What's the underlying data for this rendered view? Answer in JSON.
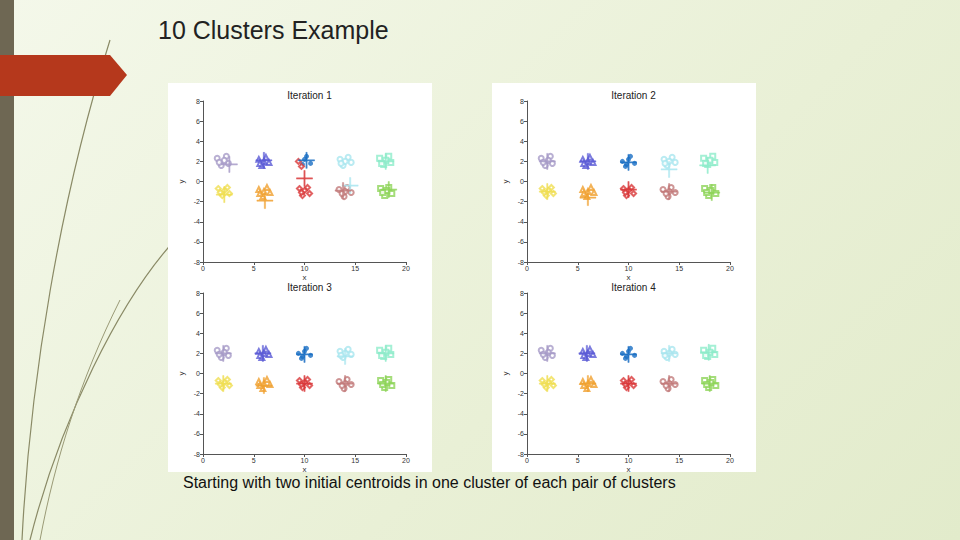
{
  "slide": {
    "title": "10 Clusters Example",
    "caption": "Starting with two initial centroids in one cluster of each pair of clusters"
  },
  "chart_data": [
    {
      "type": "scatter",
      "title": "Iteration 1",
      "xlabel": "x",
      "ylabel": "y",
      "xlim": [
        0,
        20
      ],
      "xticks": [
        0,
        5,
        10,
        15,
        20
      ],
      "ylim": [
        -8,
        8
      ],
      "yticks": [
        -8,
        -6,
        -4,
        -2,
        0,
        2,
        4,
        6,
        8
      ],
      "grid": false,
      "series": [
        {
          "color": "#a89cc8",
          "marker": "circle",
          "x": [
            1.4,
            1.8,
            2.3,
            2.5,
            2.1,
            1.6
          ],
          "y": [
            2.3,
            1.6,
            2.5,
            1.8,
            2.1,
            1.9
          ],
          "centroid": [
            2.6,
            1.7
          ]
        },
        {
          "color": "#5b5bd6",
          "marker": "triangle",
          "x": [
            5.5,
            5.8,
            6.2,
            6.5,
            6.0,
            5.6
          ],
          "y": [
            2.2,
            1.6,
            2.4,
            1.9,
            2.0,
            1.8
          ],
          "centroid": [
            6.0,
            2.1
          ]
        },
        {
          "color": "#1a6fc4",
          "marker": "dot",
          "x": [
            10.2,
            10.6,
            10.0,
            9.8
          ],
          "y": [
            2.5,
            1.8,
            2.2,
            1.7
          ],
          "centroid": [
            10.2,
            2.1
          ]
        },
        {
          "color": "#a9e6ef",
          "marker": "circle",
          "x": [
            13.5,
            13.8,
            14.3,
            14.6,
            14.0,
            13.6
          ],
          "y": [
            2.2,
            1.6,
            2.4,
            1.9,
            2.0,
            1.8
          ],
          "centroid": [
            14.5,
            -0.4
          ]
        },
        {
          "color": "#8feccb",
          "marker": "square",
          "x": [
            17.4,
            17.8,
            18.3,
            18.5,
            18.0,
            17.6
          ],
          "y": [
            2.3,
            1.7,
            2.5,
            1.9,
            2.1,
            1.8
          ],
          "centroid": [
            18.0,
            2.0
          ]
        },
        {
          "color": "#f0df52",
          "marker": "diamond",
          "x": [
            1.5,
            1.9,
            2.4,
            2.6,
            2.1,
            1.7
          ],
          "y": [
            -0.7,
            -1.4,
            -0.6,
            -1.2,
            -0.9,
            -1.1
          ],
          "centroid": [
            2.1,
            -1.3
          ]
        },
        {
          "color": "#f0a030",
          "marker": "triangle",
          "x": [
            5.5,
            5.9,
            6.3,
            6.6,
            6.0,
            5.6
          ],
          "y": [
            -0.8,
            -1.5,
            -0.6,
            -1.1,
            -1.0,
            -1.2
          ],
          "centroid": [
            6.1,
            -1.9
          ]
        },
        {
          "color": "#d9383a",
          "marker": "diamond",
          "x": [
            9.4,
            9.7,
            9.5,
            9.8,
            10.3,
            10.5,
            10.0,
            9.7
          ],
          "y": [
            2.0,
            1.5,
            -0.7,
            -1.4,
            -0.6,
            -1.2,
            -0.9,
            -1.1
          ],
          "centroid": [
            10.0,
            0.3
          ]
        },
        {
          "color": "#c27a7a",
          "marker": "circle",
          "x": [
            13.4,
            13.9,
            14.2,
            14.6,
            14.0,
            13.7
          ],
          "y": [
            -0.8,
            -1.5,
            -0.6,
            -1.1,
            -1.0,
            -1.2
          ],
          "centroid": [
            13.8,
            -0.9
          ]
        },
        {
          "color": "#8fd45a",
          "marker": "square",
          "x": [
            17.5,
            17.9,
            18.3,
            18.6,
            18.1,
            17.7
          ],
          "y": [
            -0.7,
            -1.4,
            -0.6,
            -1.2,
            -0.9,
            -1.1
          ],
          "centroid": [
            18.3,
            -0.8
          ]
        }
      ]
    },
    {
      "type": "scatter",
      "title": "Iteration 2",
      "xlabel": "x",
      "ylabel": "y",
      "xlim": [
        0,
        20
      ],
      "xticks": [
        0,
        5,
        10,
        15,
        20
      ],
      "ylim": [
        -8,
        8
      ],
      "yticks": [
        -8,
        -6,
        -4,
        -2,
        0,
        2,
        4,
        6,
        8
      ],
      "grid": false,
      "series": [
        {
          "color": "#a89cc8",
          "marker": "circle",
          "x": [
            1.4,
            1.8,
            2.3,
            2.5,
            2.1,
            1.6
          ],
          "y": [
            2.3,
            1.6,
            2.5,
            1.8,
            2.1,
            1.9
          ],
          "centroid": [
            2.0,
            2.0
          ]
        },
        {
          "color": "#5b5bd6",
          "marker": "triangle",
          "x": [
            5.5,
            5.8,
            6.2,
            6.5,
            6.0,
            5.6
          ],
          "y": [
            2.2,
            1.6,
            2.4,
            1.9,
            2.0,
            1.8
          ],
          "centroid": [
            6.0,
            2.0
          ]
        },
        {
          "color": "#1a6fc4",
          "marker": "dot",
          "x": [
            9.4,
            9.7,
            10.2,
            10.6,
            10.0,
            9.8
          ],
          "y": [
            2.0,
            1.5,
            2.5,
            1.8,
            2.2,
            1.7
          ],
          "centroid": [
            10.0,
            1.9
          ]
        },
        {
          "color": "#a9e6ef",
          "marker": "circle",
          "x": [
            13.5,
            13.8,
            14.3,
            14.6,
            14.0,
            13.6
          ],
          "y": [
            2.2,
            1.6,
            2.4,
            1.9,
            2.0,
            1.8
          ],
          "centroid": [
            14.0,
            1.2
          ]
        },
        {
          "color": "#8feccb",
          "marker": "square",
          "x": [
            17.4,
            17.8,
            18.3,
            18.5,
            18.0,
            17.6
          ],
          "y": [
            2.3,
            1.7,
            2.5,
            1.9,
            2.1,
            1.8
          ],
          "centroid": [
            17.8,
            1.6
          ]
        },
        {
          "color": "#f0df52",
          "marker": "diamond",
          "x": [
            1.5,
            1.9,
            2.4,
            2.6,
            2.1,
            1.7
          ],
          "y": [
            -0.7,
            -1.4,
            -0.6,
            -1.2,
            -0.9,
            -1.1
          ],
          "centroid": [
            2.0,
            -1.0
          ]
        },
        {
          "color": "#f0a030",
          "marker": "triangle",
          "x": [
            5.5,
            5.9,
            6.3,
            6.6,
            6.0,
            5.6
          ],
          "y": [
            -0.8,
            -1.5,
            -0.6,
            -1.1,
            -1.0,
            -1.2
          ],
          "centroid": [
            6.0,
            -1.6
          ]
        },
        {
          "color": "#d9383a",
          "marker": "diamond",
          "x": [
            9.5,
            9.8,
            10.3,
            10.5,
            10.0,
            9.7
          ],
          "y": [
            -0.7,
            -1.4,
            -0.6,
            -1.2,
            -0.9,
            -1.1
          ],
          "centroid": [
            10.0,
            -0.8
          ]
        },
        {
          "color": "#c27a7a",
          "marker": "circle",
          "x": [
            13.4,
            13.9,
            14.2,
            14.6,
            14.0,
            13.7
          ],
          "y": [
            -0.8,
            -1.5,
            -0.6,
            -1.1,
            -1.0,
            -1.2
          ],
          "centroid": [
            14.0,
            -1.0
          ]
        },
        {
          "color": "#8fd45a",
          "marker": "square",
          "x": [
            17.5,
            17.9,
            18.3,
            18.6,
            18.1,
            17.7
          ],
          "y": [
            -0.7,
            -1.4,
            -0.6,
            -1.2,
            -0.9,
            -1.1
          ],
          "centroid": [
            18.2,
            -1.1
          ]
        }
      ]
    },
    {
      "type": "scatter",
      "title": "Iteration 3",
      "xlabel": "x",
      "ylabel": "y",
      "xlim": [
        0,
        20
      ],
      "xticks": [
        0,
        5,
        10,
        15,
        20
      ],
      "ylim": [
        -8,
        8
      ],
      "yticks": [
        -8,
        -6,
        -4,
        -2,
        0,
        2,
        4,
        6,
        8
      ],
      "grid": false,
      "series": [
        {
          "color": "#a89cc8",
          "marker": "circle",
          "x": [
            1.4,
            1.8,
            2.3,
            2.5,
            2.1,
            1.6
          ],
          "y": [
            2.3,
            1.6,
            2.5,
            1.8,
            2.1,
            1.9
          ],
          "centroid": [
            2.0,
            2.0
          ]
        },
        {
          "color": "#5b5bd6",
          "marker": "triangle",
          "x": [
            5.5,
            5.8,
            6.2,
            6.5,
            6.0,
            5.6
          ],
          "y": [
            2.2,
            1.6,
            2.4,
            1.9,
            2.0,
            1.8
          ],
          "centroid": [
            5.9,
            2.0
          ]
        },
        {
          "color": "#1a6fc4",
          "marker": "dot",
          "x": [
            9.4,
            9.7,
            10.2,
            10.6,
            10.0,
            9.8
          ],
          "y": [
            2.0,
            1.5,
            2.5,
            1.8,
            2.2,
            1.7
          ],
          "centroid": [
            10.0,
            1.9
          ]
        },
        {
          "color": "#a9e6ef",
          "marker": "circle",
          "x": [
            13.5,
            13.8,
            14.3,
            14.6,
            14.0,
            13.6
          ],
          "y": [
            2.2,
            1.6,
            2.4,
            1.9,
            2.0,
            1.8
          ],
          "centroid": [
            14.0,
            1.7
          ]
        },
        {
          "color": "#8feccb",
          "marker": "square",
          "x": [
            17.4,
            17.8,
            18.3,
            18.5,
            18.0,
            17.6
          ],
          "y": [
            2.3,
            1.7,
            2.5,
            1.9,
            2.1,
            1.8
          ],
          "centroid": [
            18.0,
            2.0
          ]
        },
        {
          "color": "#f0df52",
          "marker": "diamond",
          "x": [
            1.5,
            1.9,
            2.4,
            2.6,
            2.1,
            1.7
          ],
          "y": [
            -0.7,
            -1.4,
            -0.6,
            -1.2,
            -0.9,
            -1.1
          ],
          "centroid": [
            2.0,
            -1.0
          ]
        },
        {
          "color": "#f0a030",
          "marker": "triangle",
          "x": [
            5.5,
            5.9,
            6.3,
            6.6,
            6.0,
            5.6
          ],
          "y": [
            -0.8,
            -1.5,
            -0.6,
            -1.1,
            -1.0,
            -1.2
          ],
          "centroid": [
            6.0,
            -1.2
          ]
        },
        {
          "color": "#d9383a",
          "marker": "diamond",
          "x": [
            9.5,
            9.8,
            10.3,
            10.5,
            10.0,
            9.7
          ],
          "y": [
            -0.7,
            -1.4,
            -0.6,
            -1.2,
            -0.9,
            -1.1
          ],
          "centroid": [
            10.0,
            -1.0
          ]
        },
        {
          "color": "#c27a7a",
          "marker": "circle",
          "x": [
            13.4,
            13.9,
            14.2,
            14.6,
            14.0,
            13.7
          ],
          "y": [
            -0.8,
            -1.5,
            -0.6,
            -1.1,
            -1.0,
            -1.2
          ],
          "centroid": [
            14.0,
            -1.0
          ]
        },
        {
          "color": "#8fd45a",
          "marker": "square",
          "x": [
            17.5,
            17.9,
            18.3,
            18.6,
            18.1,
            17.7
          ],
          "y": [
            -0.7,
            -1.4,
            -0.6,
            -1.2,
            -0.9,
            -1.1
          ],
          "centroid": [
            18.0,
            -1.0
          ]
        }
      ]
    },
    {
      "type": "scatter",
      "title": "Iteration 4",
      "xlabel": "x",
      "ylabel": "y",
      "xlim": [
        0,
        20
      ],
      "xticks": [
        0,
        5,
        10,
        15,
        20
      ],
      "ylim": [
        -8,
        8
      ],
      "yticks": [
        -8,
        -6,
        -4,
        -2,
        0,
        2,
        4,
        6,
        8
      ],
      "grid": false,
      "series": [
        {
          "color": "#a89cc8",
          "marker": "circle",
          "x": [
            1.4,
            1.8,
            2.3,
            2.5,
            2.1,
            1.6
          ],
          "y": [
            2.3,
            1.6,
            2.5,
            1.8,
            2.1,
            1.9
          ],
          "centroid": [
            2.0,
            2.0
          ]
        },
        {
          "color": "#5b5bd6",
          "marker": "triangle",
          "x": [
            5.5,
            5.8,
            6.2,
            6.5,
            6.0,
            5.6
          ],
          "y": [
            2.2,
            1.6,
            2.4,
            1.9,
            2.0,
            1.8
          ],
          "centroid": [
            5.9,
            2.0
          ]
        },
        {
          "color": "#1a6fc4",
          "marker": "dot",
          "x": [
            9.4,
            9.7,
            10.2,
            10.6,
            10.0,
            9.8
          ],
          "y": [
            2.0,
            1.5,
            2.5,
            1.8,
            2.2,
            1.7
          ],
          "centroid": [
            10.0,
            1.9
          ]
        },
        {
          "color": "#a9e6ef",
          "marker": "circle",
          "x": [
            13.5,
            13.8,
            14.3,
            14.6,
            14.0,
            13.6
          ],
          "y": [
            2.2,
            1.6,
            2.4,
            1.9,
            2.0,
            1.8
          ],
          "centroid": [
            14.0,
            2.0
          ]
        },
        {
          "color": "#8feccb",
          "marker": "square",
          "x": [
            17.4,
            17.8,
            18.3,
            18.5,
            18.0,
            17.6
          ],
          "y": [
            2.3,
            1.7,
            2.5,
            1.9,
            2.1,
            1.8
          ],
          "centroid": [
            17.9,
            2.1
          ]
        },
        {
          "color": "#f0df52",
          "marker": "diamond",
          "x": [
            1.5,
            1.9,
            2.4,
            2.6,
            2.1,
            1.7
          ],
          "y": [
            -0.7,
            -1.4,
            -0.6,
            -1.2,
            -0.9,
            -1.1
          ],
          "centroid": [
            2.0,
            -1.0
          ]
        },
        {
          "color": "#f0a030",
          "marker": "triangle",
          "x": [
            5.5,
            5.9,
            6.3,
            6.6,
            6.0,
            5.6
          ],
          "y": [
            -0.8,
            -1.5,
            -0.6,
            -1.1,
            -1.0,
            -1.2
          ],
          "centroid": [
            6.0,
            -1.0
          ]
        },
        {
          "color": "#d9383a",
          "marker": "diamond",
          "x": [
            9.5,
            9.8,
            10.3,
            10.5,
            10.0,
            9.7
          ],
          "y": [
            -0.7,
            -1.4,
            -0.6,
            -1.2,
            -0.9,
            -1.1
          ],
          "centroid": [
            10.0,
            -1.0
          ]
        },
        {
          "color": "#c27a7a",
          "marker": "circle",
          "x": [
            13.4,
            13.9,
            14.2,
            14.6,
            14.0,
            13.7
          ],
          "y": [
            -0.8,
            -1.5,
            -0.6,
            -1.1,
            -1.0,
            -1.2
          ],
          "centroid": [
            14.0,
            -1.0
          ]
        },
        {
          "color": "#8fd45a",
          "marker": "square",
          "x": [
            17.5,
            17.9,
            18.3,
            18.6,
            18.1,
            17.7
          ],
          "y": [
            -0.7,
            -1.4,
            -0.6,
            -1.2,
            -0.9,
            -1.1
          ],
          "centroid": [
            18.0,
            -1.0
          ]
        }
      ]
    }
  ]
}
